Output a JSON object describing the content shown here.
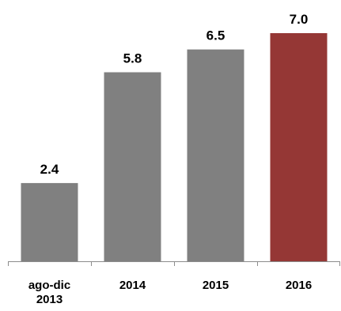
{
  "chart_data": {
    "type": "bar",
    "categories": [
      [
        "ago-dic",
        "2013"
      ],
      [
        "2014"
      ],
      [
        "2015"
      ],
      [
        "2016"
      ]
    ],
    "values": [
      2.4,
      5.8,
      6.5,
      7.0
    ],
    "value_labels": [
      "2.4",
      "5.8",
      "6.5",
      "7.0"
    ],
    "bar_colors": [
      "#808080",
      "#808080",
      "#808080",
      "#953735"
    ],
    "title": "",
    "xlabel": "",
    "ylabel": "",
    "ylim": [
      0,
      7.0
    ],
    "grid": false,
    "legend": "none"
  }
}
